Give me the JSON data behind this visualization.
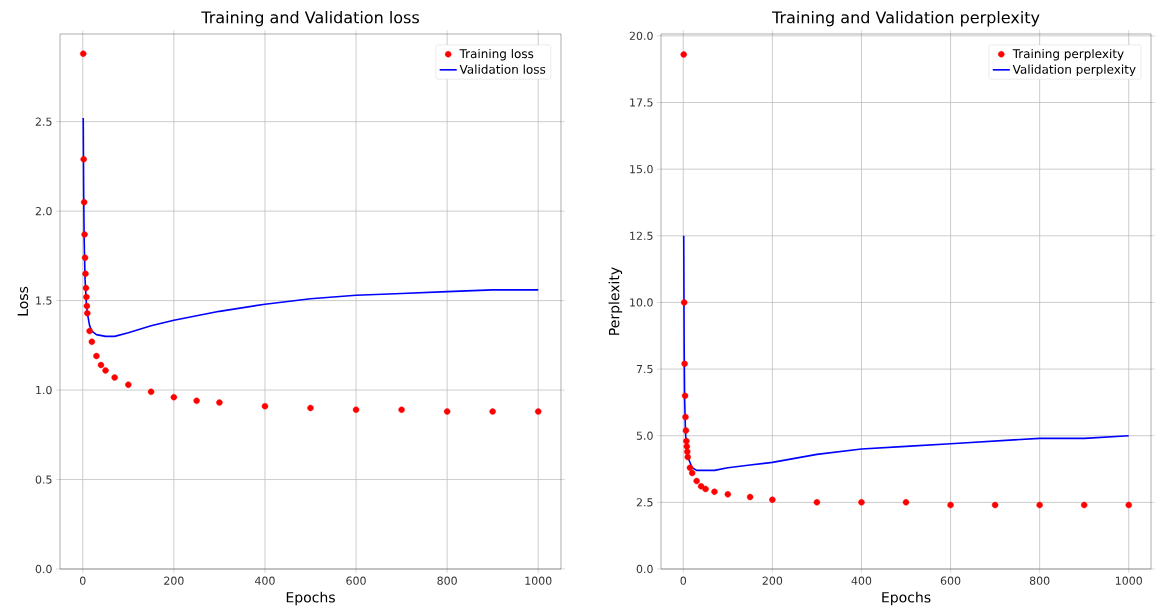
{
  "chart_data": [
    {
      "type": "scatter",
      "title": "Training and Validation loss",
      "xlabel": "Epochs",
      "ylabel": "Loss",
      "series": [
        {
          "name": "Training loss",
          "marker": "circle",
          "color": "#ff0000",
          "x": [
            1,
            2,
            3,
            4,
            5,
            6,
            7,
            8,
            9,
            10,
            15,
            20,
            30,
            40,
            50,
            70,
            100,
            150,
            200,
            250,
            300,
            400,
            500,
            600,
            700,
            800,
            900,
            1000
          ],
          "values": [
            2.88,
            2.29,
            2.05,
            1.87,
            1.74,
            1.65,
            1.57,
            1.52,
            1.47,
            1.43,
            1.33,
            1.27,
            1.19,
            1.14,
            1.11,
            1.07,
            1.03,
            0.99,
            0.96,
            0.94,
            0.93,
            0.91,
            0.9,
            0.89,
            0.89,
            0.88,
            0.88,
            0.88
          ]
        },
        {
          "name": "Validation loss",
          "type": "line",
          "marker": "none",
          "color": "#0000ff",
          "x": [
            1,
            2,
            3,
            5,
            8,
            10,
            15,
            20,
            30,
            50,
            70,
            100,
            150,
            200,
            300,
            400,
            500,
            600,
            700,
            800,
            900,
            1000
          ],
          "values": [
            2.52,
            2.1,
            1.85,
            1.62,
            1.48,
            1.43,
            1.36,
            1.33,
            1.31,
            1.3,
            1.3,
            1.32,
            1.36,
            1.39,
            1.44,
            1.48,
            1.51,
            1.53,
            1.54,
            1.55,
            1.56,
            1.56
          ]
        }
      ],
      "xlim": [
        -50,
        1050
      ],
      "ylim": [
        0,
        2.99
      ],
      "xticks": [
        0,
        200,
        400,
        600,
        800,
        1000
      ],
      "yticks": [
        {
          "value": 0,
          "label": "0.0"
        },
        0.5,
        {
          "value": 1,
          "label": "1.0"
        },
        1.5,
        {
          "value": 2,
          "label": "2.0"
        },
        2.5
      ],
      "grid": true,
      "legend": "top right"
    },
    {
      "type": "scatter",
      "title": "Training and Validation perplexity",
      "xlabel": "Epochs",
      "ylabel": "Perplexity",
      "series": [
        {
          "name": "Training perplexity",
          "marker": "circle",
          "color": "#ff0000",
          "x": [
            1,
            2,
            3,
            4,
            5,
            6,
            7,
            8,
            9,
            10,
            15,
            20,
            30,
            40,
            50,
            70,
            100,
            150,
            200,
            300,
            400,
            500,
            600,
            700,
            800,
            900,
            1000
          ],
          "values": [
            19.3,
            10.0,
            7.7,
            6.5,
            5.7,
            5.2,
            4.8,
            4.6,
            4.4,
            4.2,
            3.8,
            3.6,
            3.3,
            3.1,
            3.0,
            2.9,
            2.8,
            2.7,
            2.6,
            2.5,
            2.5,
            2.5,
            2.4,
            2.4,
            2.4,
            2.4,
            2.4
          ]
        },
        {
          "name": "Validation perplexity",
          "type": "line",
          "marker": "none",
          "color": "#0000ff",
          "x": [
            1,
            2,
            3,
            5,
            8,
            10,
            15,
            20,
            30,
            50,
            70,
            100,
            150,
            200,
            300,
            400,
            500,
            600,
            700,
            800,
            900,
            1000
          ],
          "values": [
            12.5,
            8.3,
            6.4,
            5.1,
            4.4,
            4.2,
            4.0,
            3.8,
            3.7,
            3.7,
            3.7,
            3.8,
            3.9,
            4.0,
            4.3,
            4.5,
            4.6,
            4.7,
            4.8,
            4.9,
            4.9,
            5.0
          ]
        }
      ],
      "xlim": [
        -50,
        1050
      ],
      "ylim": [
        0,
        20.07
      ],
      "xticks": [
        0,
        200,
        400,
        600,
        800,
        1000
      ],
      "yticks": [
        {
          "value": 0,
          "label": "0.0"
        },
        2.5,
        {
          "value": 5,
          "label": "5.0"
        },
        7.5,
        {
          "value": 10,
          "label": "10.0"
        },
        12.5,
        {
          "value": 15,
          "label": "15.0"
        },
        17.5,
        {
          "value": 20,
          "label": "20.0"
        }
      ],
      "grid": true,
      "legend": "top right"
    }
  ]
}
